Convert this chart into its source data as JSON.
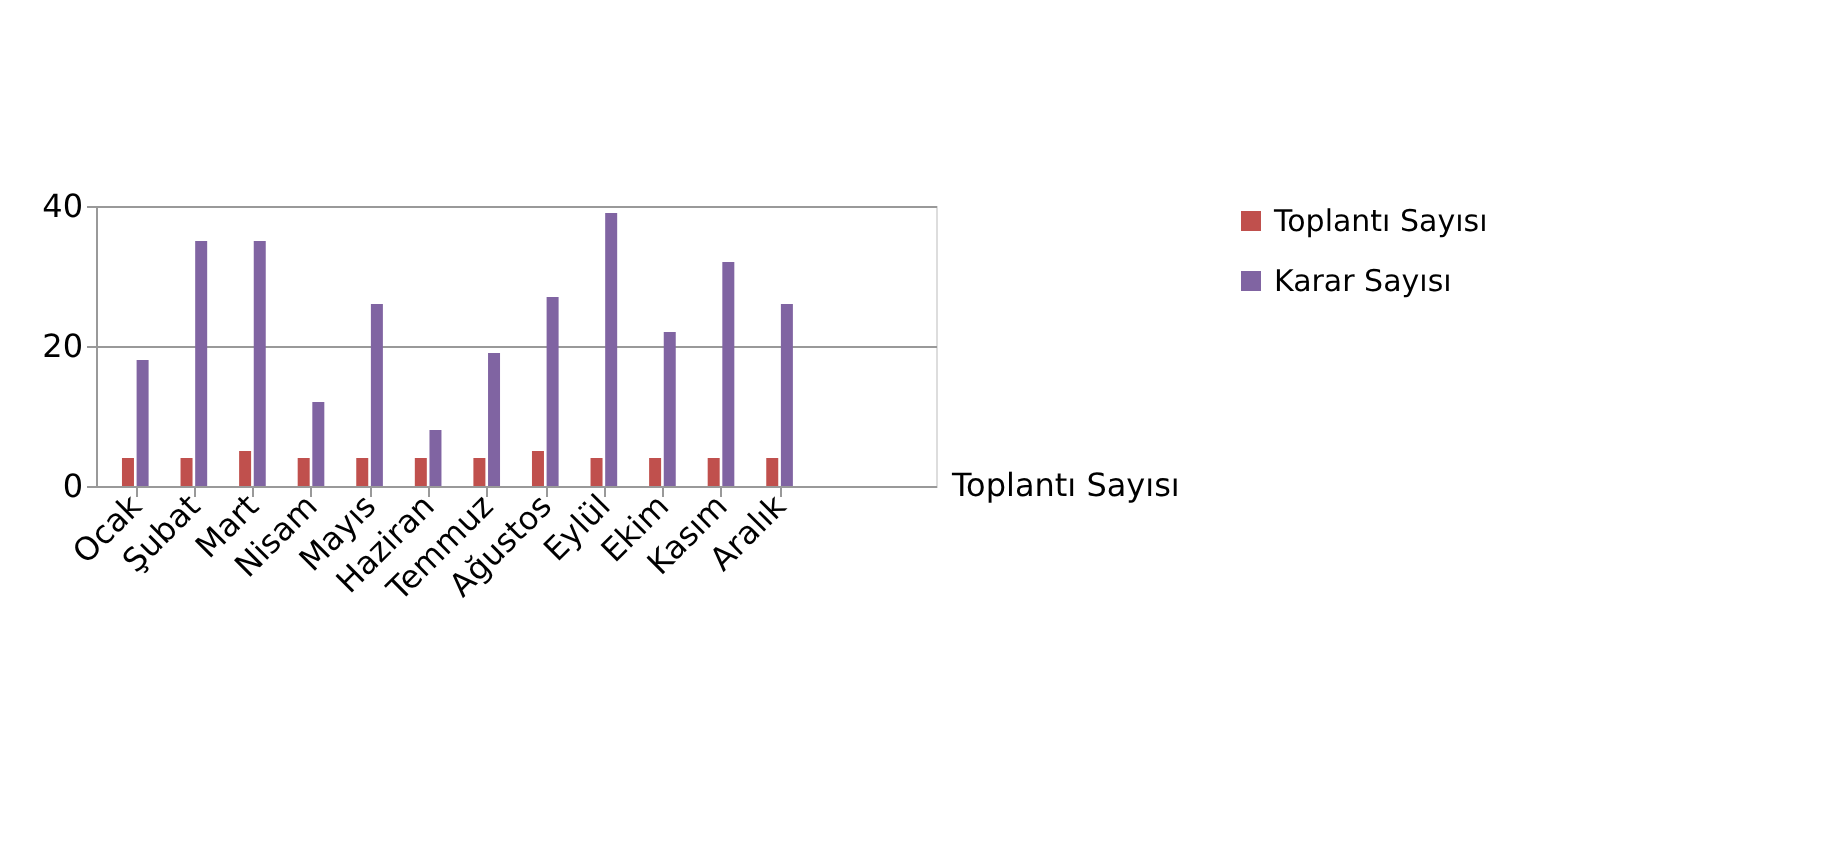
{
  "chart_data": {
    "type": "bar",
    "categories": [
      "Ocak",
      "Şubat",
      "Mart",
      "Nisam",
      "Mayıs",
      "Haziran",
      "Temmuz",
      "Ağustos",
      "Eylül",
      "Ekim",
      "Kasım",
      "Aralık"
    ],
    "series": [
      {
        "name": "Toplantı Sayısı",
        "color": "#c0504d",
        "values": [
          4,
          4,
          5,
          4,
          4,
          4,
          4,
          5,
          4,
          4,
          4,
          4
        ]
      },
      {
        "name": "Karar Sayısı",
        "color": "#8064a2",
        "values": [
          18,
          35,
          35,
          12,
          26,
          8,
          19,
          27,
          39,
          22,
          32,
          26
        ]
      }
    ],
    "ylim": [
      0,
      40
    ],
    "yticks": [
      0,
      20,
      40
    ],
    "grid": "y",
    "legend": "right",
    "annotations": [
      "Toplantı Sayısı"
    ]
  }
}
